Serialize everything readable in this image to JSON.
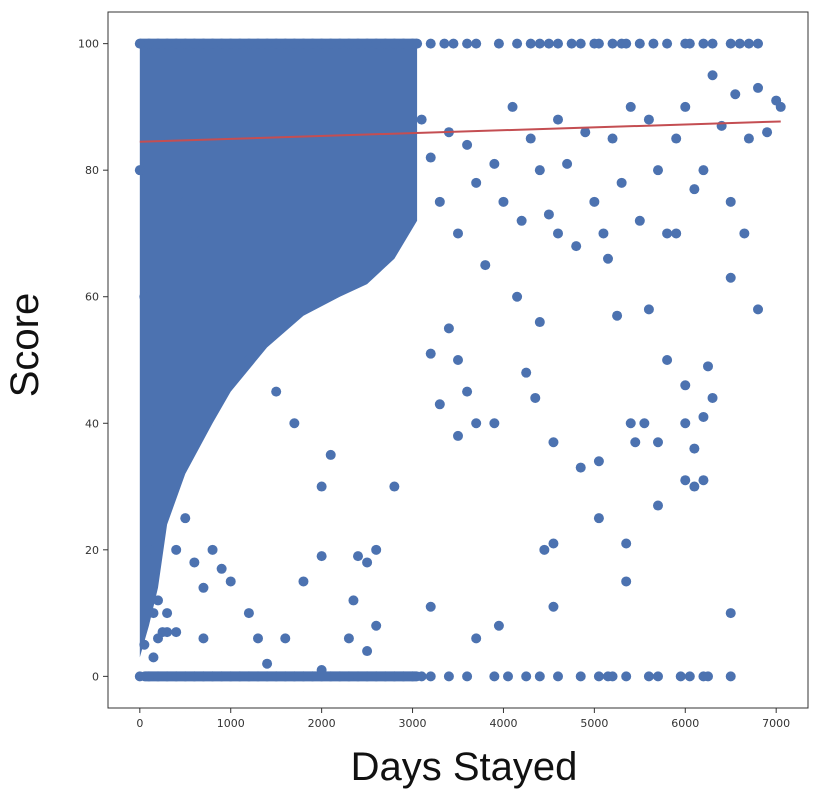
{
  "chart_data": {
    "type": "scatter",
    "title": "",
    "xlabel": "Days Stayed",
    "ylabel": "Score",
    "xlim": [
      -350,
      7350
    ],
    "ylim": [
      -5,
      105
    ],
    "x_ticks": [
      0,
      1000,
      2000,
      3000,
      4000,
      5000,
      6000,
      7000
    ],
    "x_tick_labels": [
      "0",
      "1000",
      "2000",
      "3000",
      "4000",
      "5000",
      "6000",
      "7000"
    ],
    "y_ticks": [
      0,
      20,
      40,
      60,
      80,
      100
    ],
    "y_tick_labels": [
      "0",
      "20",
      "40",
      "60",
      "80",
      "100"
    ],
    "grid": false,
    "colors": {
      "points": "#4c72b0",
      "trend": "#c44e52",
      "frame": "#333333"
    },
    "series": [
      {
        "kind": "points",
        "points": [
          [
            0,
            100
          ],
          [
            100,
            100
          ],
          [
            200,
            100
          ],
          [
            300,
            100
          ],
          [
            400,
            100
          ],
          [
            500,
            100
          ],
          [
            600,
            100
          ],
          [
            700,
            100
          ],
          [
            800,
            100
          ],
          [
            900,
            100
          ],
          [
            1000,
            100
          ],
          [
            1100,
            100
          ],
          [
            1200,
            100
          ],
          [
            1300,
            100
          ],
          [
            1400,
            100
          ],
          [
            1500,
            100
          ],
          [
            1600,
            100
          ],
          [
            1700,
            100
          ],
          [
            1800,
            100
          ],
          [
            1900,
            100
          ],
          [
            2000,
            100
          ],
          [
            2100,
            100
          ],
          [
            2200,
            100
          ],
          [
            2300,
            100
          ],
          [
            2400,
            100
          ],
          [
            2500,
            100
          ],
          [
            2600,
            100
          ],
          [
            2700,
            100
          ],
          [
            2800,
            100
          ],
          [
            2900,
            100
          ],
          [
            3000,
            100
          ],
          [
            3050,
            100
          ],
          [
            3200,
            100
          ],
          [
            3350,
            100
          ],
          [
            3450,
            100
          ],
          [
            3600,
            100
          ],
          [
            3700,
            100
          ],
          [
            3950,
            100
          ],
          [
            4150,
            100
          ],
          [
            4300,
            100
          ],
          [
            4400,
            100
          ],
          [
            4500,
            100
          ],
          [
            4600,
            100
          ],
          [
            4750,
            100
          ],
          [
            4850,
            100
          ],
          [
            5000,
            100
          ],
          [
            5050,
            100
          ],
          [
            5200,
            100
          ],
          [
            5300,
            100
          ],
          [
            5350,
            100
          ],
          [
            5500,
            100
          ],
          [
            5650,
            100
          ],
          [
            5800,
            100
          ],
          [
            6000,
            100
          ],
          [
            6050,
            100
          ],
          [
            6200,
            100
          ],
          [
            6300,
            100
          ],
          [
            6500,
            100
          ],
          [
            6600,
            100
          ],
          [
            6700,
            100
          ],
          [
            6800,
            100
          ],
          [
            0,
            0
          ],
          [
            100,
            0
          ],
          [
            200,
            0
          ],
          [
            300,
            0
          ],
          [
            400,
            0
          ],
          [
            500,
            0
          ],
          [
            600,
            0
          ],
          [
            700,
            0
          ],
          [
            800,
            0
          ],
          [
            900,
            0
          ],
          [
            1000,
            0
          ],
          [
            1100,
            0
          ],
          [
            1200,
            0
          ],
          [
            1300,
            0
          ],
          [
            1400,
            0
          ],
          [
            1500,
            0
          ],
          [
            1600,
            0
          ],
          [
            1700,
            0
          ],
          [
            1800,
            0
          ],
          [
            1900,
            0
          ],
          [
            2000,
            0
          ],
          [
            2100,
            0
          ],
          [
            2200,
            0
          ],
          [
            2300,
            0
          ],
          [
            2400,
            0
          ],
          [
            2500,
            0
          ],
          [
            2600,
            0
          ],
          [
            2700,
            0
          ],
          [
            2800,
            0
          ],
          [
            2900,
            0
          ],
          [
            3000,
            0
          ],
          [
            3100,
            0
          ],
          [
            3200,
            0
          ],
          [
            3400,
            0
          ],
          [
            3600,
            0
          ],
          [
            3900,
            0
          ],
          [
            4050,
            0
          ],
          [
            4250,
            0
          ],
          [
            4400,
            0
          ],
          [
            4600,
            0
          ],
          [
            4850,
            0
          ],
          [
            5050,
            0
          ],
          [
            5150,
            0
          ],
          [
            5200,
            0
          ],
          [
            5350,
            0
          ],
          [
            5600,
            0
          ],
          [
            5700,
            0
          ],
          [
            5950,
            0
          ],
          [
            6050,
            0
          ],
          [
            6200,
            0
          ],
          [
            6250,
            0
          ],
          [
            6500,
            0
          ],
          [
            0,
            80
          ],
          [
            50,
            60
          ],
          [
            100,
            40
          ],
          [
            100,
            20
          ],
          [
            150,
            10
          ],
          [
            50,
            5
          ],
          [
            200,
            6
          ],
          [
            250,
            7
          ],
          [
            300,
            7
          ],
          [
            400,
            7
          ],
          [
            150,
            3
          ],
          [
            200,
            12
          ],
          [
            300,
            10
          ],
          [
            400,
            20
          ],
          [
            500,
            25
          ],
          [
            600,
            18
          ],
          [
            700,
            14
          ],
          [
            800,
            20
          ],
          [
            900,
            17
          ],
          [
            1000,
            15
          ],
          [
            700,
            6
          ],
          [
            1200,
            10
          ],
          [
            1300,
            6
          ],
          [
            1400,
            2
          ],
          [
            1600,
            6
          ],
          [
            1800,
            15
          ],
          [
            2000,
            19
          ],
          [
            2000,
            1
          ],
          [
            2300,
            6
          ],
          [
            2500,
            4
          ],
          [
            2600,
            8
          ],
          [
            2500,
            18
          ],
          [
            2400,
            19
          ],
          [
            2350,
            12
          ],
          [
            2600,
            20
          ],
          [
            2800,
            30
          ],
          [
            2000,
            30
          ],
          [
            2100,
            35
          ],
          [
            1700,
            40
          ],
          [
            1500,
            45
          ],
          [
            1200,
            50
          ],
          [
            1000,
            55
          ],
          [
            800,
            60
          ],
          [
            600,
            70
          ],
          [
            500,
            75
          ],
          [
            3200,
            51
          ],
          [
            3400,
            55
          ],
          [
            3500,
            50
          ],
          [
            3600,
            45
          ],
          [
            3700,
            40
          ],
          [
            3900,
            40
          ],
          [
            3500,
            38
          ],
          [
            3300,
            43
          ],
          [
            3200,
            11
          ],
          [
            3700,
            6
          ],
          [
            3950,
            8
          ],
          [
            4150,
            60
          ],
          [
            4250,
            48
          ],
          [
            4350,
            44
          ],
          [
            4400,
            56
          ],
          [
            4450,
            20
          ],
          [
            4550,
            21
          ],
          [
            4550,
            11
          ],
          [
            4550,
            37
          ],
          [
            4600,
            70
          ],
          [
            4850,
            33
          ],
          [
            5050,
            34
          ],
          [
            5050,
            25
          ],
          [
            5150,
            66
          ],
          [
            5250,
            57
          ],
          [
            5350,
            21
          ],
          [
            5350,
            15
          ],
          [
            5400,
            40
          ],
          [
            5450,
            37
          ],
          [
            5550,
            40
          ],
          [
            5600,
            58
          ],
          [
            5700,
            27
          ],
          [
            5700,
            37
          ],
          [
            5800,
            50
          ],
          [
            5900,
            70
          ],
          [
            5900,
            85
          ],
          [
            6000,
            31
          ],
          [
            6000,
            46
          ],
          [
            6000,
            40
          ],
          [
            6100,
            30
          ],
          [
            6100,
            36
          ],
          [
            6200,
            31
          ],
          [
            6200,
            41
          ],
          [
            6250,
            49
          ],
          [
            6300,
            44
          ],
          [
            6500,
            10
          ],
          [
            6500,
            63
          ],
          [
            6500,
            75
          ],
          [
            6800,
            58
          ],
          [
            6900,
            86
          ],
          [
            7000,
            91
          ],
          [
            7050,
            90
          ],
          [
            6800,
            93
          ],
          [
            6700,
            85
          ],
          [
            6650,
            70
          ],
          [
            6550,
            92
          ],
          [
            6400,
            87
          ],
          [
            6300,
            95
          ],
          [
            6200,
            80
          ],
          [
            6100,
            77
          ],
          [
            6000,
            90
          ],
          [
            5800,
            70
          ],
          [
            5700,
            80
          ],
          [
            5600,
            88
          ],
          [
            5500,
            72
          ],
          [
            5400,
            90
          ],
          [
            5300,
            78
          ],
          [
            5200,
            85
          ],
          [
            5100,
            70
          ],
          [
            5000,
            75
          ],
          [
            4900,
            86
          ],
          [
            4800,
            68
          ],
          [
            4700,
            81
          ],
          [
            4600,
            88
          ],
          [
            4500,
            73
          ],
          [
            4400,
            80
          ],
          [
            4300,
            85
          ],
          [
            4200,
            72
          ],
          [
            4100,
            90
          ],
          [
            4000,
            75
          ],
          [
            3900,
            81
          ],
          [
            3800,
            65
          ],
          [
            3700,
            78
          ],
          [
            3600,
            84
          ],
          [
            3500,
            70
          ],
          [
            3400,
            86
          ],
          [
            3300,
            75
          ],
          [
            3200,
            82
          ],
          [
            3100,
            88
          ]
        ]
      },
      {
        "kind": "trend",
        "x": [
          0,
          7050
        ],
        "y": [
          84.5,
          87.7
        ]
      }
    ]
  }
}
